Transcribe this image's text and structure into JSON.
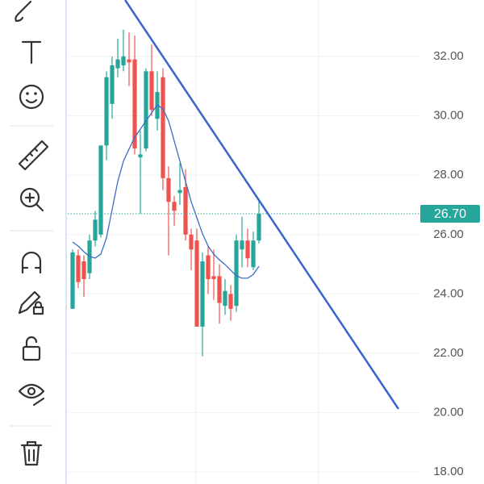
{
  "chart_data": {
    "type": "candlestick",
    "ylim": [
      17.6,
      33.9
    ],
    "yticks": [
      {
        "value": 18,
        "label": "18.00"
      },
      {
        "value": 20,
        "label": "20.00"
      },
      {
        "value": 22,
        "label": "22.00"
      },
      {
        "value": 24,
        "label": "24.00"
      },
      {
        "value": 26,
        "label": "26.00"
      },
      {
        "value": 28,
        "label": "28.00"
      },
      {
        "value": 30,
        "label": "30.00"
      },
      {
        "value": 32,
        "label": "32.00"
      }
    ],
    "up_color": "#26a69a",
    "down_color": "#ef5350",
    "open": [
      23.5,
      25.3,
      25.1,
      24.7,
      25.8,
      26.0,
      29.0,
      30.4,
      31.6,
      31.7,
      31.9,
      31.9,
      28.6,
      28.9,
      31.5,
      29.9,
      31.3,
      27.9,
      27.1,
      27.4,
      27.6,
      26.0,
      25.8,
      22.9,
      25.3,
      24.6,
      24.6,
      23.6,
      24.0,
      23.6,
      25.5,
      25.8,
      24.9,
      25.8
    ],
    "high": [
      25.5,
      25.5,
      25.3,
      26.0,
      26.8,
      29.0,
      31.5,
      32.0,
      32.6,
      32.9,
      32.8,
      32.7,
      29.5,
      31.6,
      32.4,
      31.5,
      31.6,
      28.3,
      27.3,
      28.4,
      28.2,
      26.2,
      26.2,
      25.4,
      25.6,
      25.5,
      25.0,
      24.5,
      24.3,
      26.0,
      26.6,
      26.2,
      26.1,
      27.2
    ],
    "low": [
      23.5,
      24.2,
      23.9,
      24.5,
      25.6,
      25.9,
      28.5,
      29.9,
      31.3,
      31.5,
      31.0,
      28.7,
      26.7,
      28.8,
      30.0,
      29.5,
      27.5,
      25.3,
      26.3,
      27.0,
      25.8,
      24.8,
      22.9,
      21.9,
      24.0,
      23.8,
      23.0,
      23.3,
      23.1,
      23.4,
      24.9,
      24.9,
      24.8,
      25.7
    ],
    "close": [
      25.4,
      24.4,
      24.5,
      25.8,
      26.5,
      29.0,
      31.3,
      31.7,
      31.9,
      32.0,
      31.8,
      28.9,
      28.7,
      31.5,
      30.2,
      30.8,
      27.9,
      27.1,
      26.8,
      27.5,
      26.0,
      25.5,
      22.9,
      25.1,
      24.5,
      24.5,
      23.7,
      24.1,
      23.5,
      25.8,
      25.8,
      25.2,
      25.8,
      26.7
    ],
    "moving_average": {
      "color": "#3d6bc4",
      "values": [
        25.75,
        25.61,
        25.42,
        25.26,
        25.21,
        25.34,
        25.89,
        26.84,
        27.79,
        28.47,
        28.88,
        29.28,
        29.55,
        29.83,
        30.1,
        30.37,
        30.23,
        29.83,
        29.15,
        28.47,
        27.79,
        27.11,
        26.57,
        26.03,
        25.61,
        25.34,
        25.15,
        24.99,
        24.8,
        24.61,
        24.53,
        24.53,
        24.66,
        24.93
      ]
    },
    "trendline": {
      "color": "#3a63d0",
      "x": [
        9.3,
        57.7
      ],
      "values": [
        33.9,
        20.13
      ]
    },
    "last_price": {
      "value": 26.7,
      "label": "26.70"
    }
  }
}
